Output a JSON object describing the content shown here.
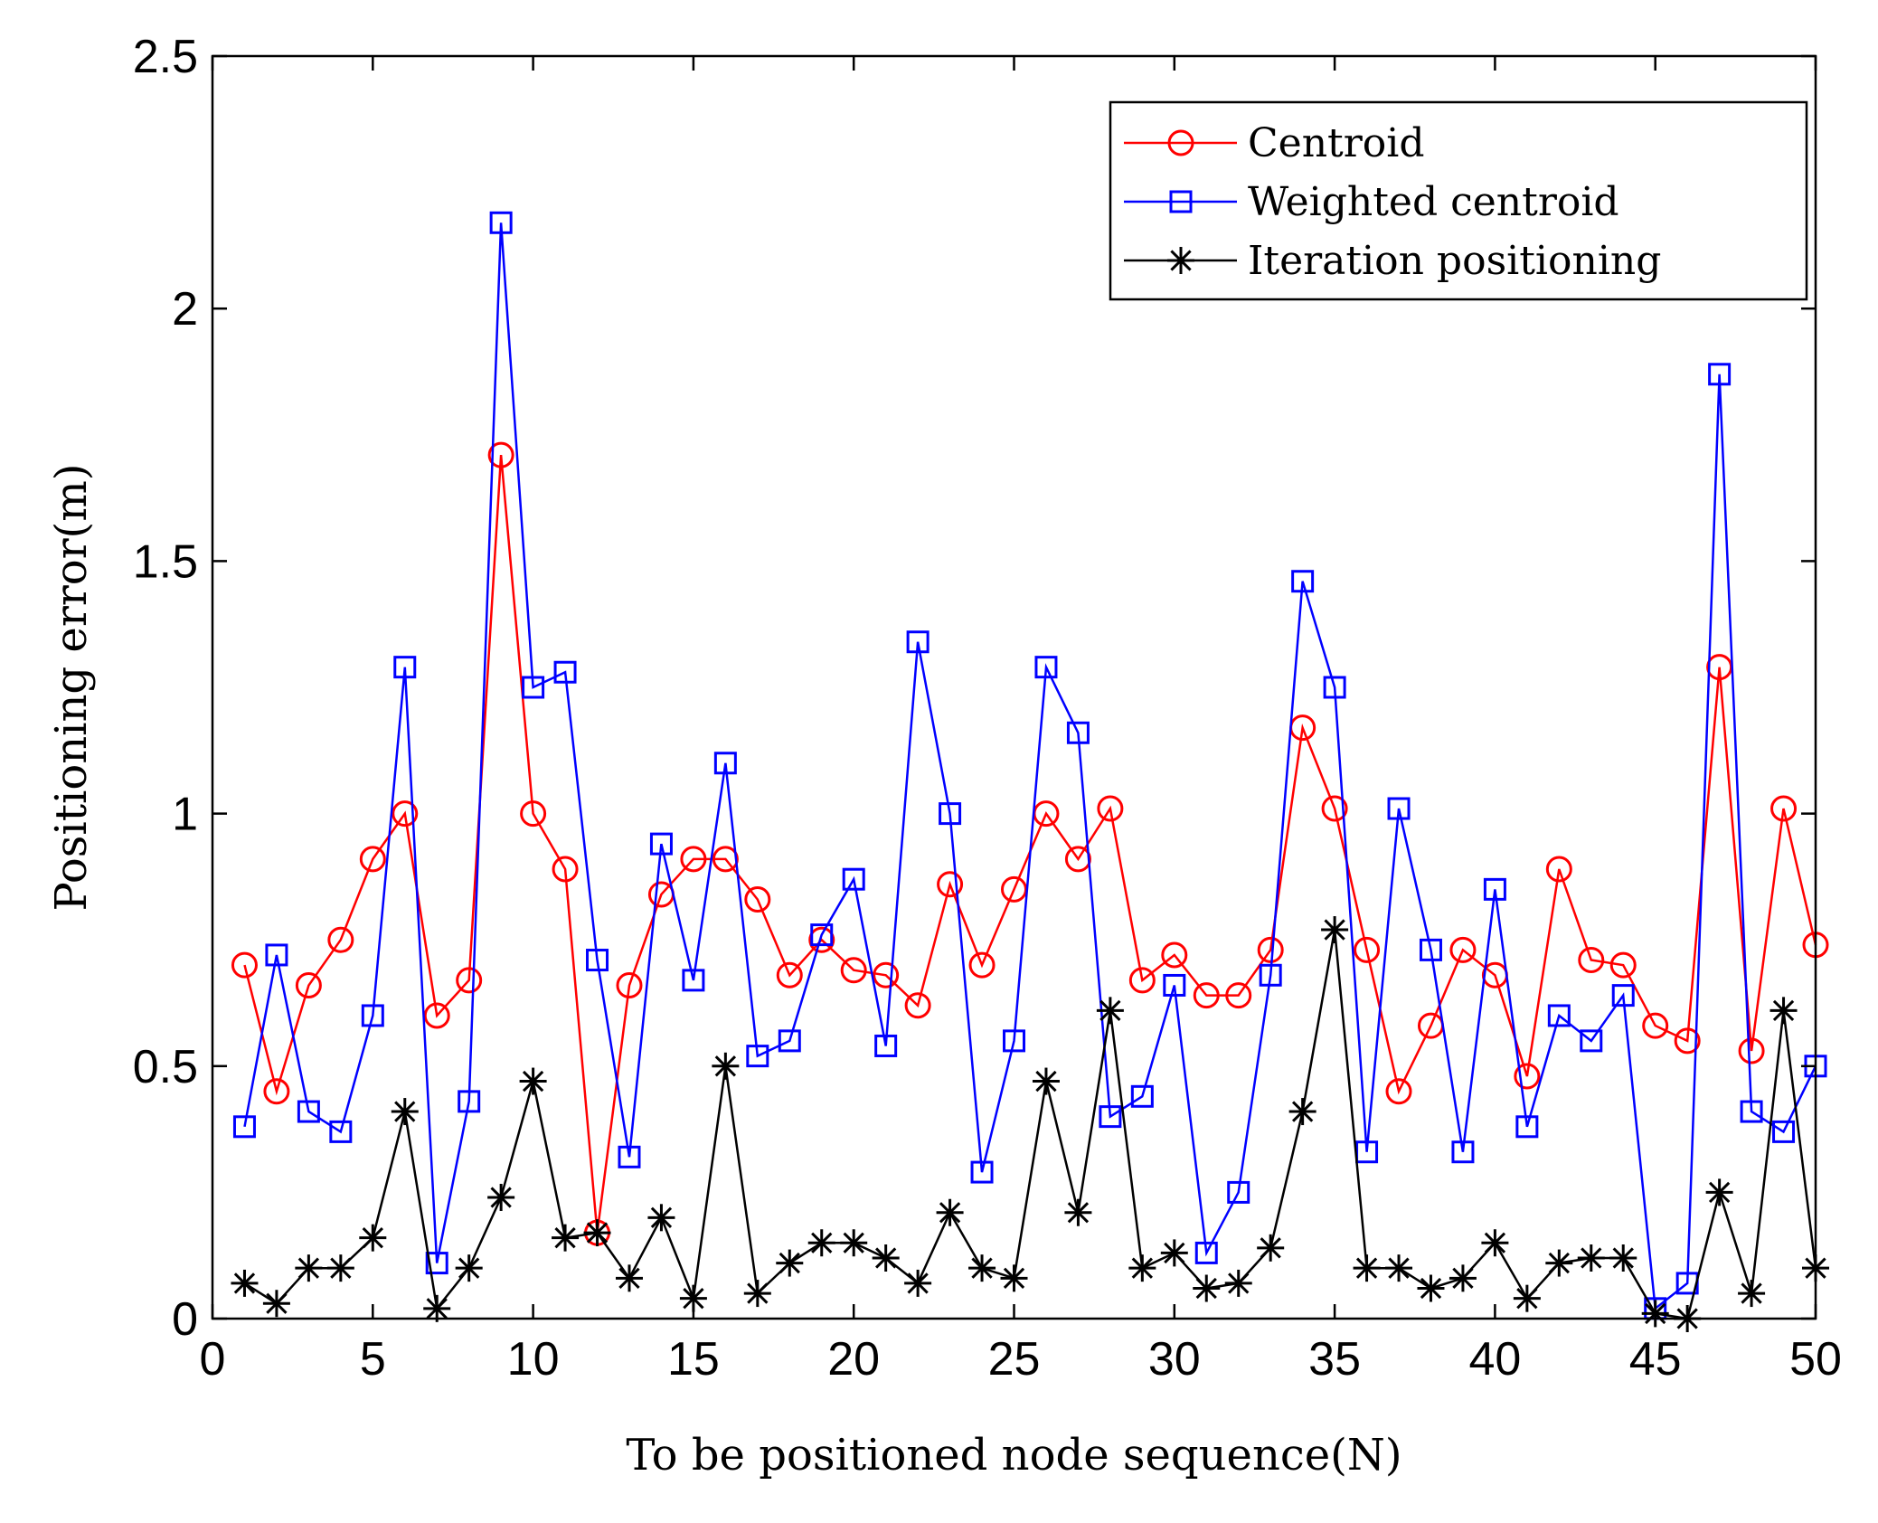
{
  "chart_data": {
    "type": "line",
    "title": "",
    "xlabel": "To be positioned node sequence(N)",
    "ylabel": "Positioning error(m)",
    "xlim": [
      0,
      50
    ],
    "ylim": [
      0,
      2.5
    ],
    "xticks": [
      0,
      5,
      10,
      15,
      20,
      25,
      30,
      35,
      40,
      45,
      50
    ],
    "xtick_labels": [
      "0",
      "5",
      "10",
      "15",
      "20",
      "25",
      "30",
      "35",
      "40",
      "45",
      "50"
    ],
    "yticks": [
      0,
      0.5,
      1,
      1.5,
      2,
      2.5
    ],
    "ytick_labels": [
      "0",
      "0.5",
      "1",
      "1.5",
      "2",
      "2.5"
    ],
    "grid": false,
    "legend_position": "top-right",
    "x": [
      1,
      2,
      3,
      4,
      5,
      6,
      7,
      8,
      9,
      10,
      11,
      12,
      13,
      14,
      15,
      16,
      17,
      18,
      19,
      20,
      21,
      22,
      23,
      24,
      25,
      26,
      27,
      28,
      29,
      30,
      31,
      32,
      33,
      34,
      35,
      36,
      37,
      38,
      39,
      40,
      41,
      42,
      43,
      44,
      45,
      46,
      47,
      48,
      49,
      50
    ],
    "series": [
      {
        "name": "Centroid",
        "color": "#ff0000",
        "marker": "circle",
        "values": [
          0.7,
          0.45,
          0.66,
          0.75,
          0.91,
          1.0,
          0.6,
          0.67,
          1.71,
          1.0,
          0.89,
          0.17,
          0.66,
          0.84,
          0.91,
          0.91,
          0.83,
          0.68,
          0.75,
          0.69,
          0.68,
          0.62,
          0.86,
          0.7,
          0.85,
          1.0,
          0.91,
          1.01,
          0.67,
          0.72,
          0.64,
          0.64,
          0.73,
          1.17,
          1.01,
          0.73,
          0.45,
          0.58,
          0.73,
          0.68,
          0.48,
          0.89,
          0.71,
          0.7,
          0.58,
          0.55,
          1.29,
          0.53,
          1.01,
          0.74
        ]
      },
      {
        "name": "Weighted centroid",
        "color": "#0000ff",
        "marker": "square",
        "values": [
          0.38,
          0.72,
          0.41,
          0.37,
          0.6,
          1.29,
          0.11,
          0.43,
          2.17,
          1.25,
          1.28,
          0.71,
          0.32,
          0.94,
          0.67,
          1.1,
          0.52,
          0.55,
          0.76,
          0.87,
          0.54,
          1.34,
          1.0,
          0.29,
          0.55,
          1.29,
          1.16,
          0.4,
          0.44,
          0.66,
          0.13,
          0.25,
          0.68,
          1.46,
          1.25,
          0.33,
          1.01,
          0.73,
          0.33,
          0.85,
          0.38,
          0.6,
          0.55,
          0.64,
          0.02,
          0.07,
          1.87,
          0.41,
          0.37,
          0.5
        ]
      },
      {
        "name": "Iteration positioning",
        "color": "#000000",
        "marker": "star",
        "values": [
          0.07,
          0.03,
          0.1,
          0.1,
          0.16,
          0.41,
          0.02,
          0.1,
          0.24,
          0.47,
          0.16,
          0.17,
          0.08,
          0.2,
          0.04,
          0.5,
          0.05,
          0.11,
          0.15,
          0.15,
          0.12,
          0.07,
          0.21,
          0.1,
          0.08,
          0.47,
          0.21,
          0.61,
          0.1,
          0.13,
          0.06,
          0.07,
          0.14,
          0.41,
          0.77,
          0.1,
          0.1,
          0.06,
          0.08,
          0.15,
          0.04,
          0.11,
          0.12,
          0.12,
          0.01,
          0.0,
          0.25,
          0.05,
          0.61,
          0.1
        ]
      }
    ]
  }
}
